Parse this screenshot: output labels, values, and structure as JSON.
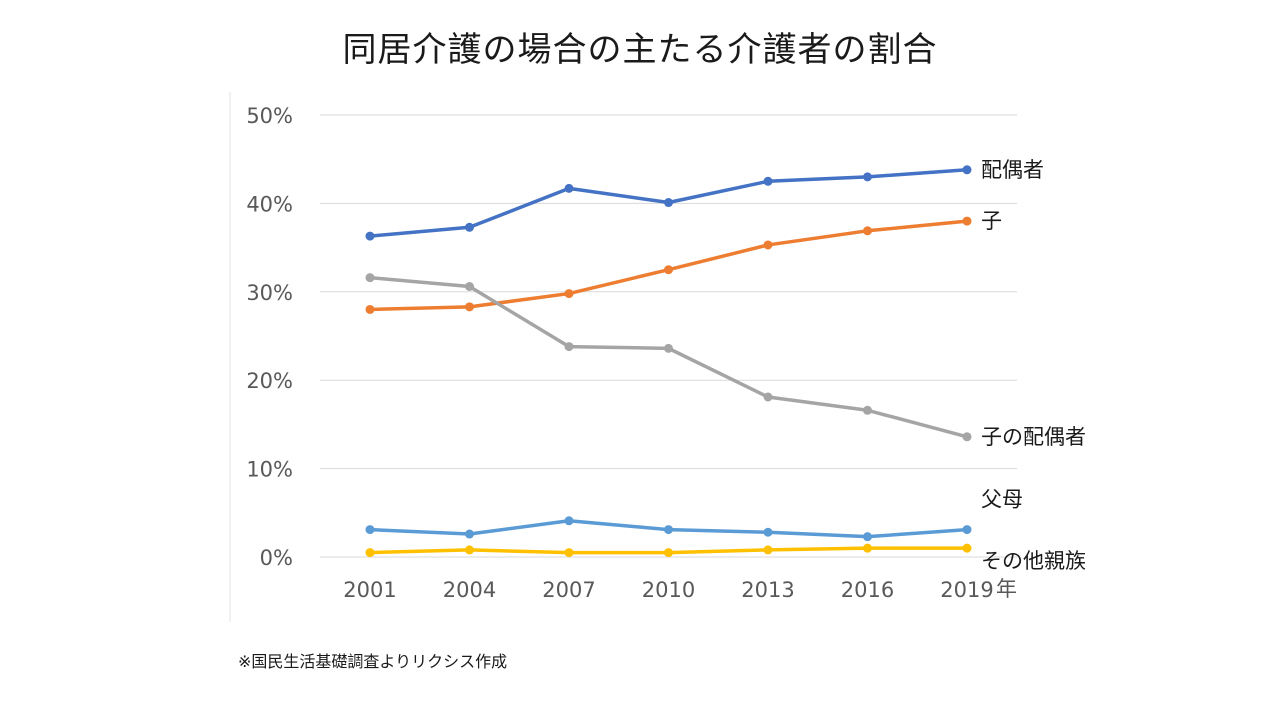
{
  "chart_data": {
    "type": "line",
    "title": "同居介護の場合の主たる介護者の割合",
    "x": [
      "2001",
      "2004",
      "2007",
      "2010",
      "2013",
      "2016",
      "2019"
    ],
    "x_unit": "年",
    "y_ticks": [
      "0%",
      "10%",
      "20%",
      "30%",
      "40%",
      "50%"
    ],
    "ylim": [
      0,
      50
    ],
    "grid": true,
    "series": [
      {
        "name": "配偶者",
        "color": "#4472c4",
        "values": [
          36.3,
          37.3,
          41.7,
          40.1,
          42.5,
          43.0,
          43.8
        ]
      },
      {
        "name": "子",
        "color": "#ed7d31",
        "values": [
          28.0,
          28.3,
          29.8,
          32.5,
          35.3,
          36.9,
          38.0
        ]
      },
      {
        "name": "子の配偶者",
        "color": "#a5a5a5",
        "values": [
          31.6,
          30.6,
          23.8,
          23.6,
          18.1,
          16.6,
          13.6
        ]
      },
      {
        "name": "父母",
        "color": "#5b9bd5",
        "values": [
          3.1,
          2.6,
          4.1,
          3.1,
          2.8,
          2.3,
          3.1
        ]
      },
      {
        "name": "その他親族",
        "color": "#ffc000",
        "values": [
          0.5,
          0.8,
          0.5,
          0.5,
          0.8,
          1.0,
          1.0
        ]
      }
    ]
  },
  "footnote": "※国民生活基礎調査よりリクシス作成"
}
